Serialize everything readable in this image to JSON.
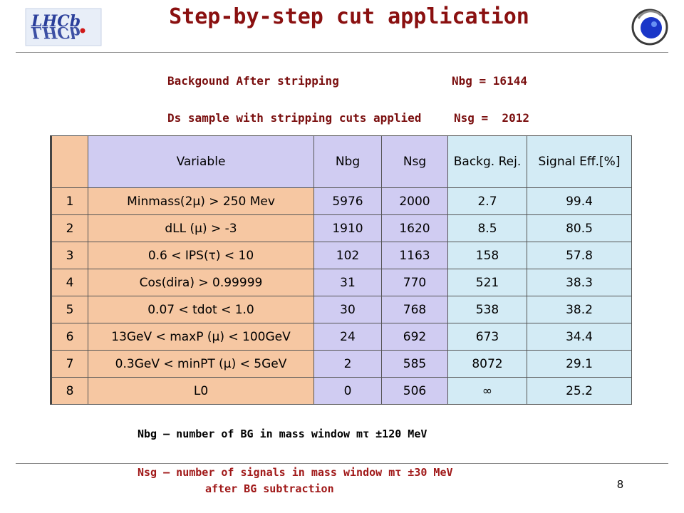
{
  "header": {
    "title": "Step-by-step cut application",
    "logo_left_text": "LHCb"
  },
  "info": {
    "line1_label": "Backgound After stripping",
    "line1_value": "Nbg = 16144",
    "line2_label": "Ds sample with stripping cuts applied",
    "line2_value": "Nsg =  2012"
  },
  "table": {
    "headers": [
      "",
      "Variable",
      "Nbg",
      "Nsg",
      "Backg. Rej.",
      "Signal Eff.[%]"
    ],
    "rows": [
      [
        "1",
        "Minmass(2μ) > 250 Mev",
        "5976",
        "2000",
        "2.7",
        "99.4"
      ],
      [
        "2",
        "dLL (μ) > -3",
        "1910",
        "1620",
        "8.5",
        "80.5"
      ],
      [
        "3",
        "0.6 < IPS(τ) < 10",
        "102",
        "1163",
        "158",
        "57.8"
      ],
      [
        "4",
        "Cos(dira) > 0.99999",
        "31",
        "770",
        "521",
        "38.3"
      ],
      [
        "5",
        "0.07 < tdot < 1.0",
        "30",
        "768",
        "538",
        "38.2"
      ],
      [
        "6",
        "13GeV < maxP (μ) < 100GeV",
        "24",
        "692",
        "673",
        "34.4"
      ],
      [
        "7",
        "0.3GeV < minPT (μ) < 5GeV",
        "2",
        "585",
        "8072",
        "29.1"
      ],
      [
        "8",
        "L0",
        "0",
        "506",
        "∞",
        "25.2"
      ]
    ]
  },
  "footer": {
    "note1": "Nbg – number of BG in mass window mτ ±120 MeV",
    "note2_line1": "Nsg – number of signals in mass window mτ ±30 MeV",
    "note2_line2": "after BG subtraction",
    "page_number": "8"
  },
  "colors": {
    "title": "#8a1010",
    "info_text": "#7a0e0e",
    "variable_column": "#f6c7a2",
    "count_columns": "#d0ccf2",
    "ratio_columns": "#d3ebf5",
    "note2": "#a01818"
  }
}
